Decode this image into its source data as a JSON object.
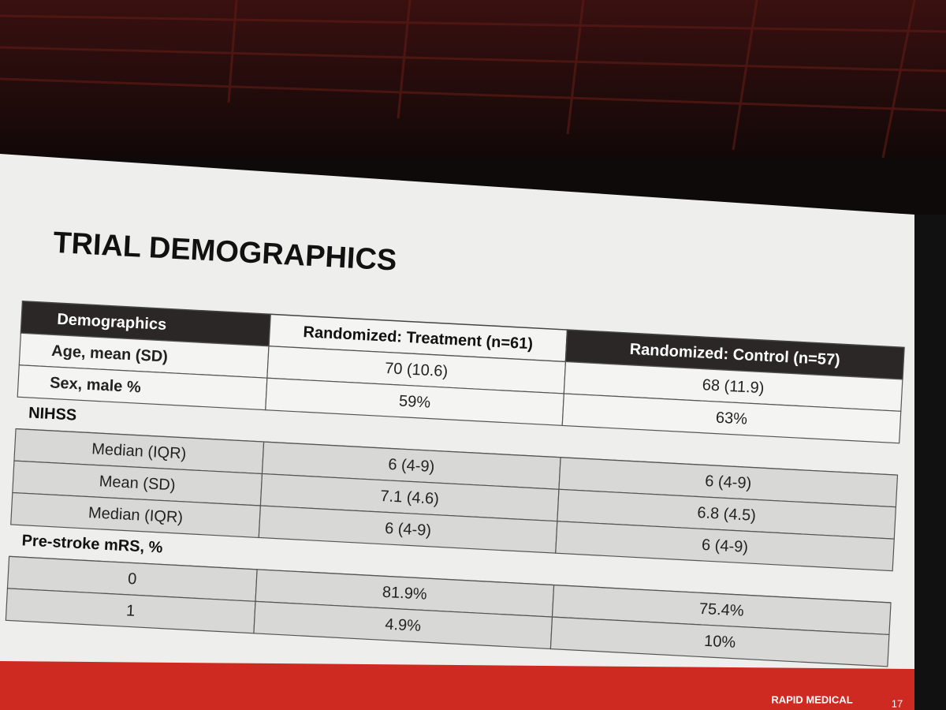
{
  "slide": {
    "title": "TRIAL DEMOGRAPHICS",
    "footer": {
      "brand": "RAPID MEDICAL",
      "page": "17"
    }
  },
  "table": {
    "header": [
      "Demographics",
      "Randomized: Treatment (n=61)",
      "Randomized: Control (n=57)"
    ],
    "rows": [
      [
        "Age, mean (SD)",
        "70 (10.6)",
        "68 (11.9)"
      ],
      [
        "Sex, male %",
        "59%",
        "63%"
      ],
      [
        "NIHSS"
      ],
      [
        "Median (IQR)",
        "6 (4-9)",
        "6 (4-9)"
      ],
      [
        "Mean (SD)",
        "7.1 (4.6)",
        "6.8 (4.5)"
      ],
      [
        "Median (IQR)",
        "6 (4-9)",
        "6 (4-9)"
      ],
      [
        "Pre-stroke mRS, %"
      ],
      [
        "0",
        "81.9%",
        "75.4%"
      ],
      [
        "1",
        "4.9%",
        "10%"
      ]
    ]
  }
}
